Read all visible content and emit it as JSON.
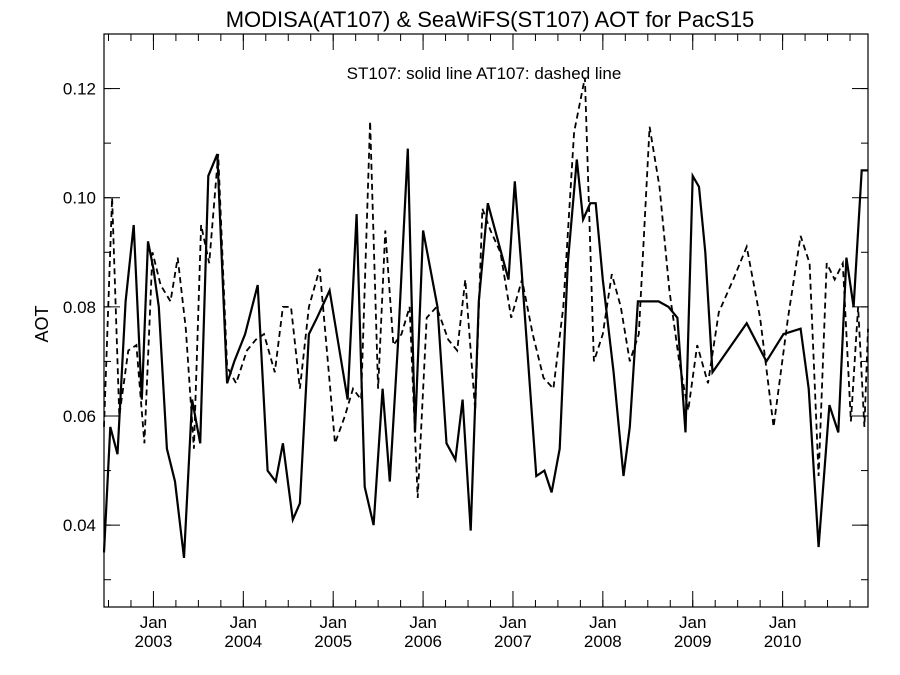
{
  "chart_data": {
    "type": "line",
    "title": "MODISA(AT107) & SeaWiFS(ST107)  AOT for PacS15",
    "annotation": "ST107: solid line   AT107: dashed line",
    "xlabel": "",
    "ylabel": "AOT",
    "xlim": [
      2002.45,
      2010.95
    ],
    "ylim": [
      0.025,
      0.13
    ],
    "y_ticks": [
      0.04,
      0.06,
      0.08,
      0.1,
      0.12
    ],
    "y_tick_labels": [
      "0.04",
      "0.06",
      "0.08",
      "0.10",
      "0.12"
    ],
    "y_minor_step": 0.01,
    "x_ticks": [
      {
        "x": 2003.0,
        "month": "Jan",
        "year": "2003"
      },
      {
        "x": 2004.0,
        "month": "Jan",
        "year": "2004"
      },
      {
        "x": 2005.0,
        "month": "Jan",
        "year": "2005"
      },
      {
        "x": 2006.0,
        "month": "Jan",
        "year": "2006"
      },
      {
        "x": 2007.0,
        "month": "Jan",
        "year": "2007"
      },
      {
        "x": 2008.0,
        "month": "Jan",
        "year": "2008"
      },
      {
        "x": 2009.0,
        "month": "Jan",
        "year": "2009"
      },
      {
        "x": 2010.0,
        "month": "Jan",
        "year": "2010"
      }
    ],
    "x_minor_step": 0.25,
    "grid": false,
    "series": [
      {
        "name": "ST107",
        "style": "solid",
        "color": "#000000",
        "x": [
          2002.45,
          2002.52,
          2002.6,
          2002.69,
          2002.78,
          2002.87,
          2002.94,
          2003.0,
          2003.06,
          2003.15,
          2003.24,
          2003.34,
          2003.43,
          2003.52,
          2003.61,
          2003.71,
          2003.82,
          2003.9,
          2004.02,
          2004.16,
          2004.27,
          2004.36,
          2004.44,
          2004.55,
          2004.63,
          2004.73,
          2004.82,
          2004.96,
          2005.16,
          2005.26,
          2005.35,
          2005.45,
          2005.55,
          2005.63,
          2005.72,
          2005.83,
          2005.91,
          2006.0,
          2006.16,
          2006.26,
          2006.36,
          2006.44,
          2006.53,
          2006.62,
          2006.72,
          2006.95,
          2007.02,
          2007.09,
          2007.26,
          2007.35,
          2007.43,
          2007.52,
          2007.61,
          2007.71,
          2007.78,
          2007.86,
          2007.92,
          2008.0,
          2008.12,
          2008.23,
          2008.3,
          2008.39,
          2008.62,
          2008.73,
          2008.83,
          2008.92,
          2009.0,
          2009.07,
          2009.14,
          2009.22,
          2009.6,
          2009.82,
          2010.01,
          2010.2,
          2010.29,
          2010.4,
          2010.52,
          2010.62,
          2010.71,
          2010.79,
          2010.88,
          2010.95
        ],
        "y": [
          0.035,
          0.058,
          0.053,
          0.081,
          0.095,
          0.063,
          0.092,
          0.087,
          0.08,
          0.054,
          0.048,
          0.034,
          0.063,
          0.055,
          0.104,
          0.108,
          0.066,
          0.07,
          0.075,
          0.084,
          0.05,
          0.048,
          0.055,
          0.041,
          0.044,
          0.075,
          0.078,
          0.083,
          0.063,
          0.097,
          0.047,
          0.04,
          0.065,
          0.048,
          0.073,
          0.109,
          0.057,
          0.094,
          0.08,
          0.055,
          0.052,
          0.063,
          0.039,
          0.081,
          0.099,
          0.085,
          0.103,
          0.088,
          0.049,
          0.05,
          0.046,
          0.054,
          0.088,
          0.107,
          0.096,
          0.099,
          0.099,
          0.085,
          0.068,
          0.049,
          0.058,
          0.081,
          0.081,
          0.08,
          0.078,
          0.057,
          0.104,
          0.102,
          0.09,
          0.068,
          0.077,
          0.07,
          0.075,
          0.076,
          0.065,
          0.036,
          0.062,
          0.057,
          0.089,
          0.08,
          0.105,
          0.105
        ]
      },
      {
        "name": "AT107",
        "style": "dashed",
        "color": "#000000",
        "x": [
          2002.45,
          2002.54,
          2002.62,
          2002.72,
          2002.81,
          2002.9,
          2002.99,
          2003.08,
          2003.19,
          2003.27,
          2003.36,
          2003.45,
          2003.53,
          2003.62,
          2003.72,
          2003.82,
          2003.92,
          2004.04,
          2004.14,
          2004.23,
          2004.35,
          2004.44,
          2004.53,
          2004.63,
          2004.73,
          2004.85,
          2005.02,
          2005.13,
          2005.22,
          2005.31,
          2005.41,
          2005.5,
          2005.58,
          2005.67,
          2005.76,
          2005.85,
          2005.94,
          2006.04,
          2006.15,
          2006.28,
          2006.38,
          2006.47,
          2006.58,
          2006.66,
          2006.75,
          2006.86,
          2006.98,
          2007.1,
          2007.22,
          2007.34,
          2007.45,
          2007.56,
          2007.68,
          2007.8,
          2007.9,
          2008.0,
          2008.1,
          2008.2,
          2008.3,
          2008.4,
          2008.52,
          2008.63,
          2008.74,
          2008.85,
          2008.95,
          2009.05,
          2009.17,
          2009.29,
          2009.45,
          2009.6,
          2009.75,
          2009.9,
          2010.06,
          2010.2,
          2010.3,
          2010.4,
          2010.49,
          2010.58,
          2010.67,
          2010.76,
          2010.84,
          2010.91,
          2010.95
        ],
        "y": [
          0.058,
          0.1,
          0.06,
          0.072,
          0.073,
          0.055,
          0.09,
          0.084,
          0.081,
          0.089,
          0.076,
          0.054,
          0.095,
          0.088,
          0.108,
          0.069,
          0.066,
          0.072,
          0.074,
          0.075,
          0.068,
          0.08,
          0.08,
          0.065,
          0.08,
          0.087,
          0.055,
          0.06,
          0.065,
          0.063,
          0.114,
          0.065,
          0.094,
          0.073,
          0.075,
          0.08,
          0.045,
          0.078,
          0.08,
          0.074,
          0.072,
          0.085,
          0.061,
          0.098,
          0.094,
          0.09,
          0.078,
          0.085,
          0.075,
          0.067,
          0.065,
          0.08,
          0.112,
          0.122,
          0.07,
          0.075,
          0.086,
          0.08,
          0.07,
          0.075,
          0.113,
          0.102,
          0.083,
          0.07,
          0.061,
          0.073,
          0.066,
          0.079,
          0.085,
          0.091,
          0.078,
          0.058,
          0.078,
          0.093,
          0.088,
          0.049,
          0.088,
          0.085,
          0.088,
          0.059,
          0.08,
          0.058,
          0.076
        ]
      }
    ]
  }
}
